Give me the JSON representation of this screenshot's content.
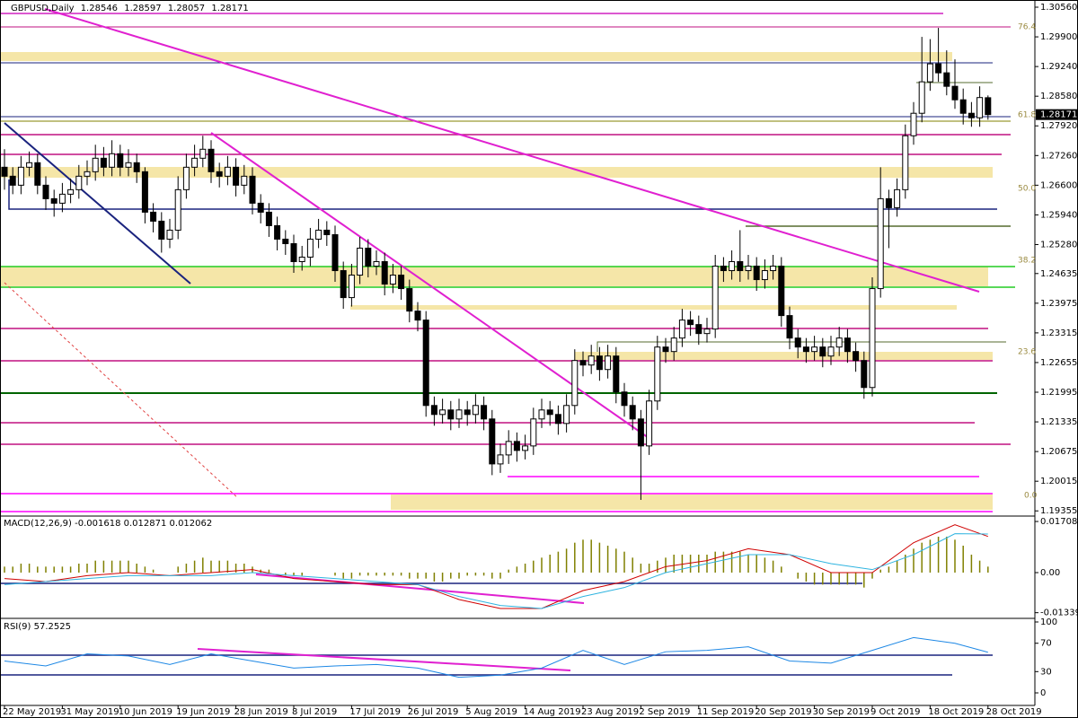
{
  "chart_data": [
    {
      "type": "candlestick",
      "title": "GBPUSD,Daily",
      "categories": [
        "22 May 2019",
        null,
        null,
        null,
        null,
        null,
        null,
        "31 May 2019",
        null,
        null,
        null,
        null,
        null,
        null,
        "10 Jun 2019",
        null,
        null,
        null,
        null,
        null,
        null,
        "19 Jun 2019",
        null,
        null,
        null,
        null,
        null,
        null,
        "28 Jun 2019",
        null,
        null,
        null,
        null,
        null,
        null,
        "8 Jul 2019",
        null,
        null,
        null,
        null,
        null,
        null,
        "17 Jul 2019",
        null,
        null,
        null,
        null,
        null,
        null,
        "26 Jul 2019",
        null,
        null,
        null,
        null,
        null,
        null,
        "5 Aug 2019",
        null,
        null,
        null,
        null,
        null,
        null,
        "14 Aug 2019",
        null,
        null,
        null,
        null,
        null,
        null,
        "23 Aug 2019",
        null,
        null,
        null,
        null,
        null,
        null,
        "2 Sep 2019",
        null,
        null,
        null,
        null,
        null,
        null,
        "11 Sep 2019",
        null,
        null,
        null,
        null,
        null,
        null,
        "20 Sep 2019",
        null,
        null,
        null,
        null,
        null,
        null,
        "30 Sep 2019",
        null,
        null,
        null,
        null,
        null,
        null,
        "9 Oct 2019",
        null,
        null,
        null,
        null,
        null,
        null,
        "18 Oct 2019",
        null,
        null,
        null,
        null,
        null,
        null,
        "28 Oct 2019"
      ],
      "ohlc": [
        [
          1.27,
          1.274,
          1.265,
          1.268
        ],
        [
          1.268,
          1.27,
          1.264,
          1.266
        ],
        [
          1.266,
          1.2725,
          1.264,
          1.27
        ],
        [
          1.27,
          1.2735,
          1.268,
          1.271
        ],
        [
          1.271,
          1.273,
          1.264,
          1.266
        ],
        [
          1.266,
          1.268,
          1.2605,
          1.263
        ],
        [
          1.263,
          1.265,
          1.259,
          1.262
        ],
        [
          1.262,
          1.2665,
          1.26,
          1.264
        ],
        [
          1.264,
          1.2675,
          1.262,
          1.265
        ],
        [
          1.265,
          1.2705,
          1.263,
          1.268
        ],
        [
          1.268,
          1.2715,
          1.266,
          1.269
        ],
        [
          1.269,
          1.275,
          1.267,
          1.272
        ],
        [
          1.272,
          1.2745,
          1.268,
          1.27
        ],
        [
          1.27,
          1.276,
          1.268,
          1.273
        ],
        [
          1.273,
          1.275,
          1.268,
          1.27
        ],
        [
          1.27,
          1.274,
          1.268,
          1.271
        ],
        [
          1.271,
          1.273,
          1.2665,
          1.269
        ],
        [
          1.269,
          1.27,
          1.2575,
          1.26
        ],
        [
          1.26,
          1.262,
          1.2555,
          1.258
        ],
        [
          1.258,
          1.26,
          1.251,
          1.254
        ],
        [
          1.254,
          1.2585,
          1.252,
          1.256
        ],
        [
          1.256,
          1.268,
          1.254,
          1.265
        ],
        [
          1.265,
          1.273,
          1.263,
          1.27
        ],
        [
          1.27,
          1.275,
          1.268,
          1.272
        ],
        [
          1.272,
          1.277,
          1.27,
          1.274
        ],
        [
          1.274,
          1.276,
          1.2665,
          1.269
        ],
        [
          1.269,
          1.271,
          1.2655,
          1.268
        ],
        [
          1.268,
          1.2725,
          1.266,
          1.27
        ],
        [
          1.27,
          1.272,
          1.2635,
          1.266
        ],
        [
          1.266,
          1.2705,
          1.264,
          1.268
        ],
        [
          1.268,
          1.27,
          1.2595,
          1.262
        ],
        [
          1.262,
          1.264,
          1.2575,
          1.26
        ],
        [
          1.26,
          1.262,
          1.2545,
          1.257
        ],
        [
          1.257,
          1.259,
          1.2515,
          1.254
        ],
        [
          1.254,
          1.256,
          1.2505,
          1.253
        ],
        [
          1.253,
          1.255,
          1.2465,
          1.249
        ],
        [
          1.249,
          1.2525,
          1.247,
          1.25
        ],
        [
          1.25,
          1.2565,
          1.248,
          1.254
        ],
        [
          1.254,
          1.2585,
          1.252,
          1.256
        ],
        [
          1.256,
          1.258,
          1.2525,
          1.255
        ],
        [
          1.255,
          1.257,
          1.2445,
          1.247
        ],
        [
          1.247,
          1.249,
          1.2385,
          1.241
        ],
        [
          1.241,
          1.2485,
          1.239,
          1.246
        ],
        [
          1.246,
          1.2545,
          1.244,
          1.252
        ],
        [
          1.252,
          1.254,
          1.2455,
          1.248
        ],
        [
          1.248,
          1.2515,
          1.246,
          1.249
        ],
        [
          1.249,
          1.251,
          1.2415,
          1.244
        ],
        [
          1.244,
          1.2485,
          1.242,
          1.246
        ],
        [
          1.246,
          1.248,
          1.2405,
          1.243
        ],
        [
          1.243,
          1.245,
          1.2355,
          1.238
        ],
        [
          1.238,
          1.24,
          1.2335,
          1.236
        ],
        [
          1.236,
          1.238,
          1.2145,
          1.217
        ],
        [
          1.217,
          1.219,
          1.2125,
          1.215
        ],
        [
          1.215,
          1.2185,
          1.213,
          1.216
        ],
        [
          1.216,
          1.218,
          1.2115,
          1.214
        ],
        [
          1.214,
          1.2185,
          1.212,
          1.216
        ],
        [
          1.216,
          1.218,
          1.2125,
          1.215
        ],
        [
          1.215,
          1.2195,
          1.213,
          1.217
        ],
        [
          1.217,
          1.219,
          1.2115,
          1.214
        ],
        [
          1.214,
          1.216,
          1.2015,
          1.204
        ],
        [
          1.204,
          1.2085,
          1.202,
          1.206
        ],
        [
          1.206,
          1.2115,
          1.204,
          1.209
        ],
        [
          1.209,
          1.211,
          1.2045,
          1.207
        ],
        [
          1.207,
          1.2105,
          1.205,
          1.208
        ],
        [
          1.208,
          1.2165,
          1.206,
          1.214
        ],
        [
          1.214,
          1.2185,
          1.212,
          1.216
        ],
        [
          1.216,
          1.218,
          1.2125,
          1.215
        ],
        [
          1.215,
          1.217,
          1.2105,
          1.213
        ],
        [
          1.213,
          1.2195,
          1.211,
          1.217
        ],
        [
          1.217,
          1.2295,
          1.215,
          1.227
        ],
        [
          1.227,
          1.229,
          1.2235,
          1.226
        ],
        [
          1.226,
          1.2305,
          1.224,
          1.228
        ],
        [
          1.228,
          1.23,
          1.2225,
          1.225
        ],
        [
          1.225,
          1.2305,
          1.223,
          1.228
        ],
        [
          1.228,
          1.23,
          1.2175,
          1.22
        ],
        [
          1.22,
          1.222,
          1.2145,
          1.217
        ],
        [
          1.217,
          1.219,
          1.2115,
          1.214
        ],
        [
          1.214,
          1.216,
          1.196,
          1.208
        ],
        [
          1.208,
          1.2205,
          1.206,
          1.218
        ],
        [
          1.218,
          1.2325,
          1.216,
          1.23
        ],
        [
          1.23,
          1.232,
          1.2265,
          1.229
        ],
        [
          1.229,
          1.2345,
          1.227,
          1.232
        ],
        [
          1.232,
          1.2385,
          1.23,
          1.236
        ],
        [
          1.236,
          1.238,
          1.2325,
          1.235
        ],
        [
          1.235,
          1.237,
          1.2305,
          1.233
        ],
        [
          1.233,
          1.2365,
          1.231,
          1.234
        ],
        [
          1.234,
          1.2505,
          1.232,
          1.248
        ],
        [
          1.248,
          1.25,
          1.2445,
          1.247
        ],
        [
          1.247,
          1.2515,
          1.245,
          1.249
        ],
        [
          1.249,
          1.256,
          1.2445,
          1.247
        ],
        [
          1.247,
          1.2505,
          1.245,
          1.248
        ],
        [
          1.248,
          1.25,
          1.2425,
          1.245
        ],
        [
          1.245,
          1.2495,
          1.243,
          1.247
        ],
        [
          1.247,
          1.2505,
          1.245,
          1.248
        ],
        [
          1.248,
          1.25,
          1.2345,
          1.237
        ],
        [
          1.237,
          1.239,
          1.2295,
          1.232
        ],
        [
          1.232,
          1.234,
          1.2275,
          1.23
        ],
        [
          1.23,
          1.232,
          1.2265,
          1.229
        ],
        [
          1.229,
          1.2325,
          1.227,
          1.23
        ],
        [
          1.23,
          1.232,
          1.2255,
          1.228
        ],
        [
          1.228,
          1.2325,
          1.226,
          1.23
        ],
        [
          1.23,
          1.2345,
          1.228,
          1.232
        ],
        [
          1.232,
          1.234,
          1.2265,
          1.229
        ],
        [
          1.229,
          1.231,
          1.2245,
          1.227
        ],
        [
          1.227,
          1.229,
          1.2185,
          1.221
        ],
        [
          1.221,
          1.2455,
          1.219,
          1.243
        ],
        [
          1.243,
          1.27,
          1.241,
          1.263
        ],
        [
          1.263,
          1.265,
          1.252,
          1.261
        ],
        [
          1.261,
          1.2675,
          1.259,
          1.265
        ],
        [
          1.265,
          1.2795,
          1.263,
          1.277
        ],
        [
          1.277,
          1.2845,
          1.275,
          1.282
        ],
        [
          1.282,
          1.299,
          1.28,
          1.289
        ],
        [
          1.289,
          1.2985,
          1.287,
          1.293
        ],
        [
          1.293,
          1.301,
          1.289,
          1.291
        ],
        [
          1.291,
          1.296,
          1.286,
          1.288
        ],
        [
          1.288,
          1.294,
          1.283,
          1.285
        ],
        [
          1.285,
          1.2875,
          1.2795,
          1.282
        ],
        [
          1.282,
          1.2845,
          1.279,
          1.281
        ],
        [
          1.281,
          1.288,
          1.279,
          1.2855
        ],
        [
          1.28546,
          1.28597,
          1.28057,
          1.28171
        ]
      ],
      "ylim": [
        1.1924,
        1.3072
      ],
      "yticks": [
        {
          "value": 1.3056,
          "label": "1.30560"
        },
        {
          "value": 1.299,
          "label": "1.29900"
        },
        {
          "value": 1.2924,
          "label": "1.29240"
        },
        {
          "value": 1.2858,
          "label": "1.28580"
        },
        {
          "value": 1.2792,
          "label": "1.27920"
        },
        {
          "value": 1.2726,
          "label": "1.27260"
        },
        {
          "value": 1.266,
          "label": "1.26600"
        },
        {
          "value": 1.2594,
          "label": "1.25940"
        },
        {
          "value": 1.2528,
          "label": "1.25280"
        },
        {
          "value": 1.24635,
          "label": "1.24635"
        },
        {
          "value": 1.23975,
          "label": "1.23975"
        },
        {
          "value": 1.23315,
          "label": "1.23315"
        },
        {
          "value": 1.22655,
          "label": "1.22655"
        },
        {
          "value": 1.21995,
          "label": "1.21995"
        },
        {
          "value": 1.21335,
          "label": "1.21335"
        },
        {
          "value": 1.20675,
          "label": "1.20675"
        },
        {
          "value": 1.20015,
          "label": "1.20015"
        },
        {
          "value": 1.19355,
          "label": "1.19355"
        }
      ],
      "annotations": [
        "76.4",
        "61.8",
        "50.0",
        "38.2",
        "23.6",
        "0.0"
      ]
    },
    {
      "type": "macd",
      "title": "MACD(12,26,9) -0.001618 0.012871 0.012062",
      "color": "#808000",
      "histogram": [
        0.002,
        0.002,
        0.003,
        0.003,
        0.002,
        0.002,
        0.002,
        0.002,
        0.002,
        0.003,
        0.003,
        0.004,
        0.004,
        0.004,
        0.004,
        0.004,
        0.003,
        0.002,
        0.001,
        0,
        0,
        0.002,
        0.003,
        0.004,
        0.005,
        0.004,
        0.004,
        0.004,
        0.003,
        0.003,
        0.002,
        0.001,
        0.001,
        0,
        -0.001,
        -0.001,
        -0.001,
        0,
        0,
        0,
        -0.001,
        -0.002,
        -0.002,
        -0.001,
        -0.001,
        -0.001,
        -0.001,
        -0.001,
        -0.001,
        -0.002,
        -0.002,
        -0.002,
        -0.003,
        -0.003,
        -0.002,
        -0.002,
        -0.001,
        -0.001,
        -0.001,
        -0.002,
        -0.002,
        0.001,
        0.002,
        0.003,
        0.004,
        0.005,
        0.006,
        0.007,
        0.008,
        0.01,
        0.011,
        0.011,
        0.01,
        0.009,
        0.008,
        0.007,
        0.005,
        0.003,
        0.003,
        0.004,
        0.005,
        0.006,
        0.006,
        0.006,
        0.006,
        0.006,
        0.007,
        0.007,
        0.007,
        0.007,
        0.006,
        0.006,
        0.005,
        0.004,
        0.002,
        0,
        -0.002,
        -0.003,
        -0.004,
        -0.004,
        -0.004,
        -0.004,
        -0.004,
        -0.004,
        -0.005,
        -0.002,
        0.001,
        0.002,
        0.004,
        0.006,
        0.008,
        0.01,
        0.011,
        0.012,
        0.012,
        0.011,
        0.009,
        0.006,
        0.004,
        0.002
      ],
      "series": [
        {
          "color": "#d00000",
          "x": [
            0,
            5,
            10,
            15,
            20,
            25,
            30,
            35,
            40,
            45,
            50,
            55,
            60,
            65,
            70,
            75,
            80,
            85,
            90,
            95,
            100,
            105,
            110,
            115,
            119
          ],
          "values": [
            -0.002,
            -0.003,
            -0.001,
            0,
            -0.001,
            0,
            0.001,
            -0.002,
            -0.003,
            -0.004,
            -0.004,
            -0.009,
            -0.012,
            -0.012,
            -0.006,
            -0.003,
            0.002,
            0.004,
            0.008,
            0.006,
            0,
            0,
            0.01,
            0.016,
            0.0121
          ]
        },
        {
          "color": "#2fb4e0",
          "x": [
            0,
            5,
            10,
            15,
            20,
            25,
            30,
            35,
            40,
            45,
            50,
            55,
            60,
            65,
            70,
            75,
            80,
            85,
            90,
            95,
            100,
            105,
            110,
            115,
            119
          ],
          "values": [
            -0.004,
            -0.003,
            -0.002,
            -0.001,
            -0.001,
            -0.001,
            0,
            -0.001,
            -0.002,
            -0.003,
            -0.004,
            -0.008,
            -0.011,
            -0.012,
            -0.008,
            -0.005,
            0,
            0.003,
            0.006,
            0.006,
            0.003,
            0.001,
            0.006,
            0.013,
            0.0129
          ]
        }
      ],
      "ylim": [
        -0.015,
        0.0186
      ],
      "yticks": [
        0.017089,
        {
          "value": 0,
          "label": "0.00"
        },
        -0.013398
      ]
    },
    {
      "type": "rsi",
      "title": "RSI(9) 57.2525",
      "series": [
        {
          "color": "#1e88e5",
          "x": [
            0,
            5,
            10,
            15,
            20,
            25,
            30,
            35,
            40,
            45,
            50,
            55,
            60,
            65,
            70,
            75,
            80,
            85,
            90,
            95,
            100,
            105,
            110,
            115,
            119
          ],
          "values": [
            45,
            38,
            55,
            52,
            40,
            55,
            45,
            35,
            38,
            40,
            35,
            22,
            25,
            35,
            60,
            40,
            58,
            60,
            65,
            45,
            42,
            60,
            78,
            70,
            57.2525
          ]
        }
      ],
      "ylim": [
        -17.7,
        103.8
      ],
      "yticks": [
        100,
        70,
        30,
        0
      ]
    }
  ]
}
